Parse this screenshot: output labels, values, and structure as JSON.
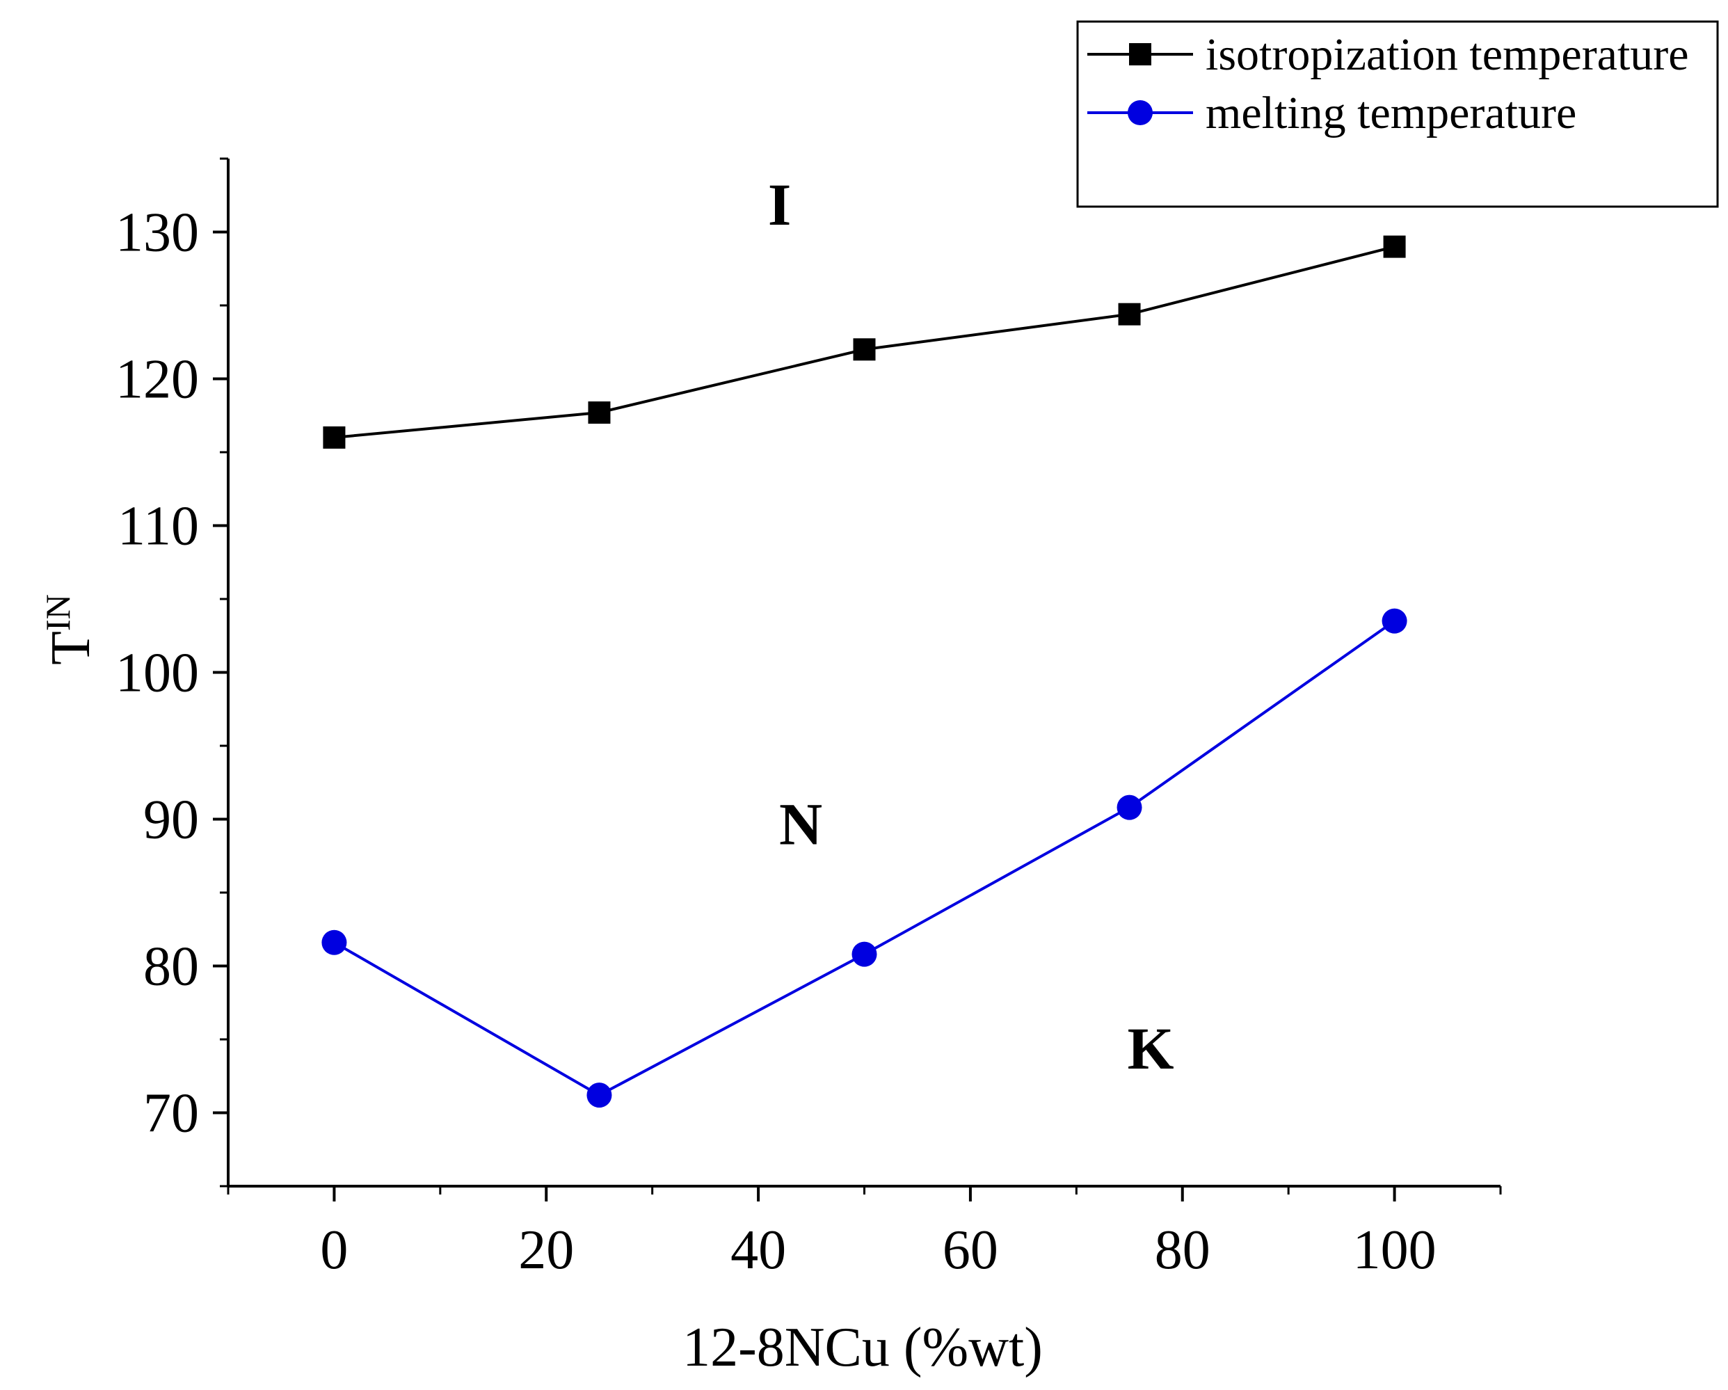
{
  "chart_data": {
    "type": "line",
    "title": "",
    "xlabel": "12-8NCu (%wt)",
    "ylabel": {
      "main": "T",
      "subscript": "IN"
    },
    "xlim": [
      -10,
      110
    ],
    "ylim": [
      65,
      135
    ],
    "x_ticks": [
      0,
      20,
      40,
      60,
      80,
      100
    ],
    "y_ticks": [
      70,
      80,
      90,
      100,
      110,
      120,
      130
    ],
    "x_tick_labels": [
      "0",
      "20",
      "40",
      "60",
      "80",
      "100"
    ],
    "y_tick_labels": [
      "70",
      "80",
      "90",
      "100",
      "110",
      "120",
      "130"
    ],
    "grid": false,
    "legend_position": "top-right",
    "series": [
      {
        "name": "isotropization temperature",
        "color": "#000000",
        "marker": "square",
        "x": [
          0,
          25,
          50,
          75,
          100
        ],
        "y": [
          116.0,
          117.7,
          122.0,
          124.4,
          129.0
        ]
      },
      {
        "name": "melting temperature",
        "color": "#0000e0",
        "marker": "circle",
        "x": [
          0,
          25,
          50,
          75,
          100
        ],
        "y": [
          81.6,
          71.2,
          80.8,
          90.8,
          103.5
        ]
      }
    ],
    "annotations": [
      {
        "text": "I",
        "x": 42,
        "y": 130.5
      },
      {
        "text": "N",
        "x": 44,
        "y": 88.3
      },
      {
        "text": "K",
        "x": 77,
        "y": 73.0
      }
    ]
  }
}
